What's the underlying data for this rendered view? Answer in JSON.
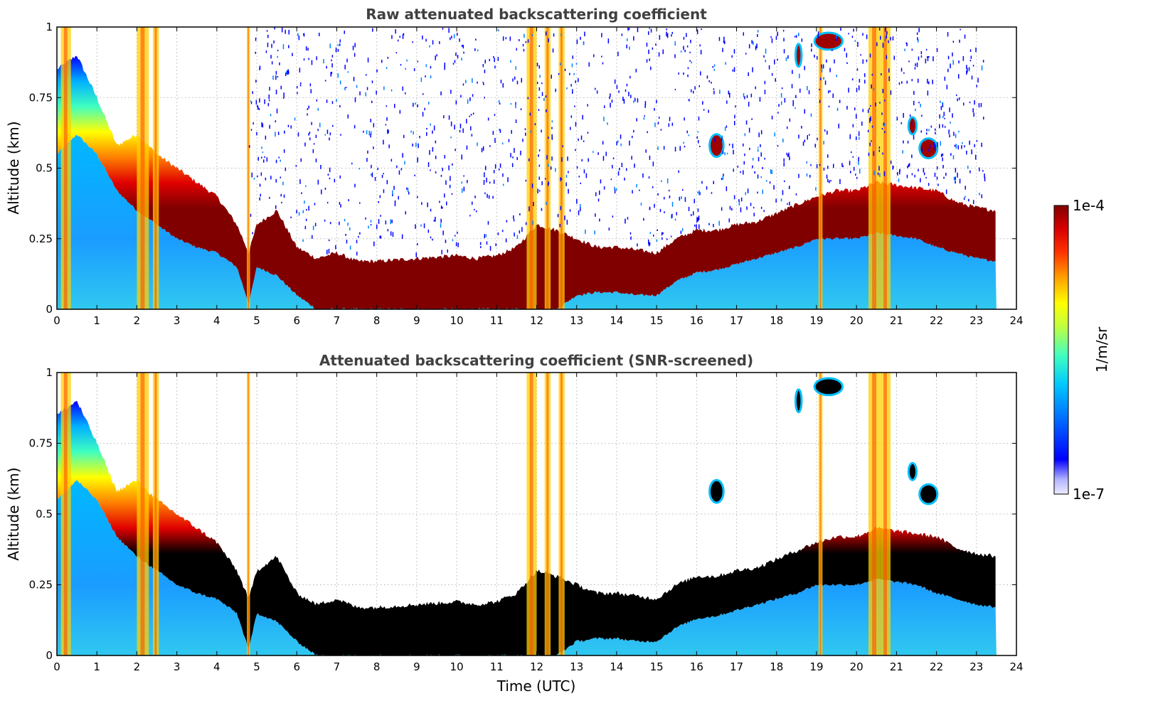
{
  "chart_data": [
    {
      "type": "heatmap",
      "title": "Raw attenuated backscattering coefficient",
      "xlabel": "",
      "ylabel": "Altitude (km)",
      "xlim": [
        0,
        24
      ],
      "ylim": [
        0,
        1
      ],
      "xticks": [
        "0",
        "1",
        "2",
        "3",
        "4",
        "5",
        "6",
        "7",
        "8",
        "9",
        "10",
        "11",
        "12",
        "13",
        "14",
        "15",
        "16",
        "17",
        "18",
        "19",
        "20",
        "21",
        "22",
        "23",
        "24"
      ],
      "yticks": [
        "0",
        "0.25",
        "0.5",
        "0.75",
        "1"
      ],
      "grid": true,
      "data_end_hour": 23.5,
      "screened": false,
      "layer_top_km": [
        [
          0,
          0.85
        ],
        [
          0.5,
          0.9
        ],
        [
          1,
          0.75
        ],
        [
          1.5,
          0.58
        ],
        [
          2,
          0.62
        ],
        [
          2.5,
          0.55
        ],
        [
          3,
          0.5
        ],
        [
          3.5,
          0.45
        ],
        [
          4,
          0.4
        ],
        [
          4.5,
          0.3
        ],
        [
          4.8,
          0.2
        ],
        [
          5,
          0.3
        ],
        [
          5.5,
          0.35
        ],
        [
          6,
          0.22
        ],
        [
          6.5,
          0.18
        ],
        [
          7,
          0.2
        ],
        [
          7.5,
          0.17
        ],
        [
          8,
          0.17
        ],
        [
          9,
          0.18
        ],
        [
          10,
          0.19
        ],
        [
          10.5,
          0.18
        ],
        [
          11,
          0.19
        ],
        [
          11.5,
          0.22
        ],
        [
          12,
          0.3
        ],
        [
          12.5,
          0.28
        ],
        [
          13,
          0.25
        ],
        [
          13.5,
          0.22
        ],
        [
          14,
          0.22
        ],
        [
          14.5,
          0.21
        ],
        [
          15,
          0.2
        ],
        [
          15.5,
          0.25
        ],
        [
          16,
          0.28
        ],
        [
          16.5,
          0.28
        ],
        [
          17,
          0.3
        ],
        [
          17.5,
          0.31
        ],
        [
          18,
          0.34
        ],
        [
          18.5,
          0.37
        ],
        [
          19,
          0.4
        ],
        [
          19.5,
          0.42
        ],
        [
          20,
          0.42
        ],
        [
          20.5,
          0.45
        ],
        [
          21,
          0.44
        ],
        [
          21.5,
          0.43
        ],
        [
          22,
          0.42
        ],
        [
          22.5,
          0.38
        ],
        [
          23,
          0.36
        ],
        [
          23.5,
          0.35
        ]
      ],
      "layer_base_km": [
        [
          0,
          0.55
        ],
        [
          0.5,
          0.62
        ],
        [
          1,
          0.55
        ],
        [
          1.5,
          0.42
        ],
        [
          2,
          0.35
        ],
        [
          2.5,
          0.3
        ],
        [
          3,
          0.25
        ],
        [
          3.5,
          0.22
        ],
        [
          4,
          0.2
        ],
        [
          4.5,
          0.15
        ],
        [
          4.8,
          0.02
        ],
        [
          5,
          0.15
        ],
        [
          5.5,
          0.12
        ],
        [
          6,
          0.05
        ],
        [
          6.5,
          0.0
        ],
        [
          7,
          0.0
        ],
        [
          8,
          0.0
        ],
        [
          9,
          0.0
        ],
        [
          10,
          0.0
        ],
        [
          11,
          0.0
        ],
        [
          11.5,
          0.0
        ],
        [
          12,
          0.0
        ],
        [
          12.5,
          0.0
        ],
        [
          13,
          0.05
        ],
        [
          13.5,
          0.06
        ],
        [
          14,
          0.06
        ],
        [
          14.5,
          0.05
        ],
        [
          15,
          0.05
        ],
        [
          15.5,
          0.1
        ],
        [
          16,
          0.13
        ],
        [
          16.5,
          0.14
        ],
        [
          17,
          0.16
        ],
        [
          17.5,
          0.18
        ],
        [
          18,
          0.2
        ],
        [
          18.5,
          0.22
        ],
        [
          19,
          0.25
        ],
        [
          19.5,
          0.25
        ],
        [
          20,
          0.25
        ],
        [
          20.5,
          0.27
        ],
        [
          21,
          0.26
        ],
        [
          21.5,
          0.25
        ],
        [
          22,
          0.22
        ],
        [
          22.5,
          0.2
        ],
        [
          23,
          0.18
        ],
        [
          23.5,
          0.17
        ]
      ]
    },
    {
      "type": "heatmap",
      "title": "Attenuated backscattering coefficient (SNR-screened)",
      "xlabel": "Time (UTC)",
      "ylabel": "Altitude (km)",
      "xlim": [
        0,
        24
      ],
      "ylim": [
        0,
        1
      ],
      "xticks": [
        "0",
        "1",
        "2",
        "3",
        "4",
        "5",
        "6",
        "7",
        "8",
        "9",
        "10",
        "11",
        "12",
        "13",
        "14",
        "15",
        "16",
        "17",
        "18",
        "19",
        "20",
        "21",
        "22",
        "23",
        "24"
      ],
      "yticks": [
        "0",
        "0.25",
        "0.5",
        "0.75",
        "1"
      ],
      "grid": true,
      "data_end_hour": 23.5,
      "screened": true
    }
  ],
  "colorbar": {
    "label": "1/m/sr",
    "max_label": "1e-4",
    "min_label": "1e-7",
    "colors": [
      "#e8e8ff",
      "#c8c8ff",
      "#8080ff",
      "#3030ff",
      "#0000ff",
      "#0040ff",
      "#0080ff",
      "#00b0ff",
      "#00e0ff",
      "#40ffc0",
      "#80ff80",
      "#c0ff40",
      "#ffff00",
      "#ffc000",
      "#ff8000",
      "#ff4000",
      "#ff0000",
      "#d00000",
      "#800000"
    ]
  }
}
